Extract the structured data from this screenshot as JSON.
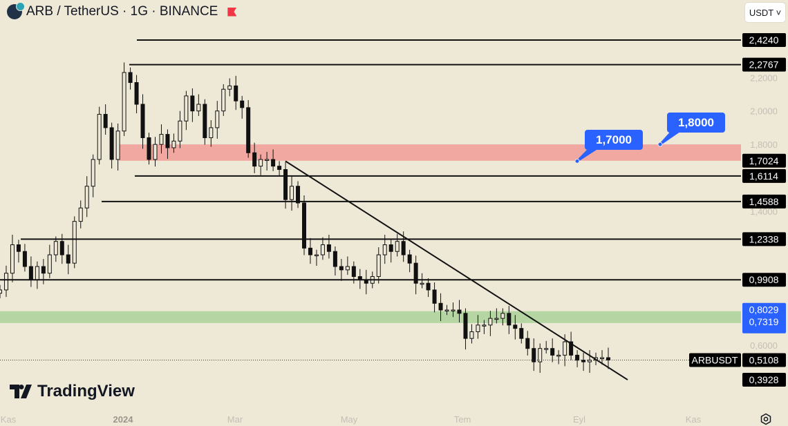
{
  "header": {
    "title": "ARB / TetherUS · 1G · BINANCE",
    "currency_button": "USDT ˅",
    "flag_color": "#f23645"
  },
  "watermark": "TradingView",
  "chart_data": {
    "type": "candlestick",
    "symbol": "ARBUSDT",
    "interval": "1G",
    "exchange": "BINANCE",
    "ylim": [
      0.3,
      2.45
    ],
    "price_axis_ticks": [
      "2,2000",
      "2,0000",
      "1,8000",
      "1,4000",
      "0,6000"
    ],
    "price_axis_tick_values": [
      2.2,
      2.0,
      1.8,
      1.4,
      0.6
    ],
    "time_axis_ticks": [
      "Kas",
      "2024",
      "Mar",
      "May",
      "Tem",
      "Eyl",
      "Kas"
    ],
    "closes": [
      0.93,
      1.03,
      1.2,
      1.16,
      1.07,
      0.99,
      1.07,
      1.03,
      1.14,
      1.22,
      1.14,
      1.09,
      1.34,
      1.42,
      1.55,
      1.71,
      1.98,
      1.9,
      1.71,
      1.88,
      2.23,
      2.17,
      2.04,
      1.84,
      1.71,
      1.8,
      1.86,
      1.78,
      1.82,
      1.94,
      2.09,
      2.0,
      2.04,
      1.84,
      1.9,
      2.0,
      2.13,
      2.15,
      2.06,
      2.02,
      1.75,
      1.67,
      1.71,
      1.71,
      1.67,
      1.65,
      1.47,
      1.55,
      1.45,
      1.18,
      1.14,
      1.14,
      1.2,
      1.16,
      1.07,
      1.05,
      1.07,
      1.01,
      0.99,
      0.97,
      1.01,
      1.14,
      1.2,
      1.16,
      1.22,
      1.14,
      1.09,
      0.97,
      0.97,
      0.93,
      0.85,
      0.81,
      0.81,
      0.81,
      0.79,
      0.64,
      0.68,
      0.72,
      0.72,
      0.76,
      0.76,
      0.79,
      0.72,
      0.7,
      0.64,
      0.58,
      0.5,
      0.58,
      0.58,
      0.54,
      0.54,
      0.62,
      0.54,
      0.51,
      0.5,
      0.51,
      0.525,
      0.525,
      0.5108
    ],
    "current_price": {
      "symbol_label": "ARBUSDT",
      "value": 0.5108,
      "label": "0,5108"
    },
    "horizontal_levels": [
      {
        "value": 2.424,
        "label": "2,4240"
      },
      {
        "value": 2.2767,
        "label": "2,2767"
      },
      {
        "value": 1.6114,
        "label": "1,6114"
      },
      {
        "value": 1.4588,
        "label": "1,4588"
      },
      {
        "value": 1.2338,
        "label": "1,2338"
      },
      {
        "value": 0.9908,
        "label": "0,9908"
      }
    ],
    "extra_labels": [
      {
        "value": 1.7024,
        "label": "1,7024"
      },
      {
        "value": 0.3928,
        "label": "0,3928"
      }
    ],
    "resistance_zone": {
      "low": 1.7024,
      "high": 1.8,
      "color": "#f0a8a0"
    },
    "support_zone": {
      "low": 0.7319,
      "high": 0.8029,
      "low_label": "0,7319",
      "high_label": "0,8029",
      "color": "#b5d6a3"
    },
    "trendline": {
      "start_price": 1.7,
      "end_price": 0.3928
    },
    "callouts": [
      {
        "label": "1,7000",
        "value": 1.7
      },
      {
        "label": "1,8000",
        "value": 1.8
      }
    ],
    "callout_color": "#2962ff",
    "grid": false
  }
}
